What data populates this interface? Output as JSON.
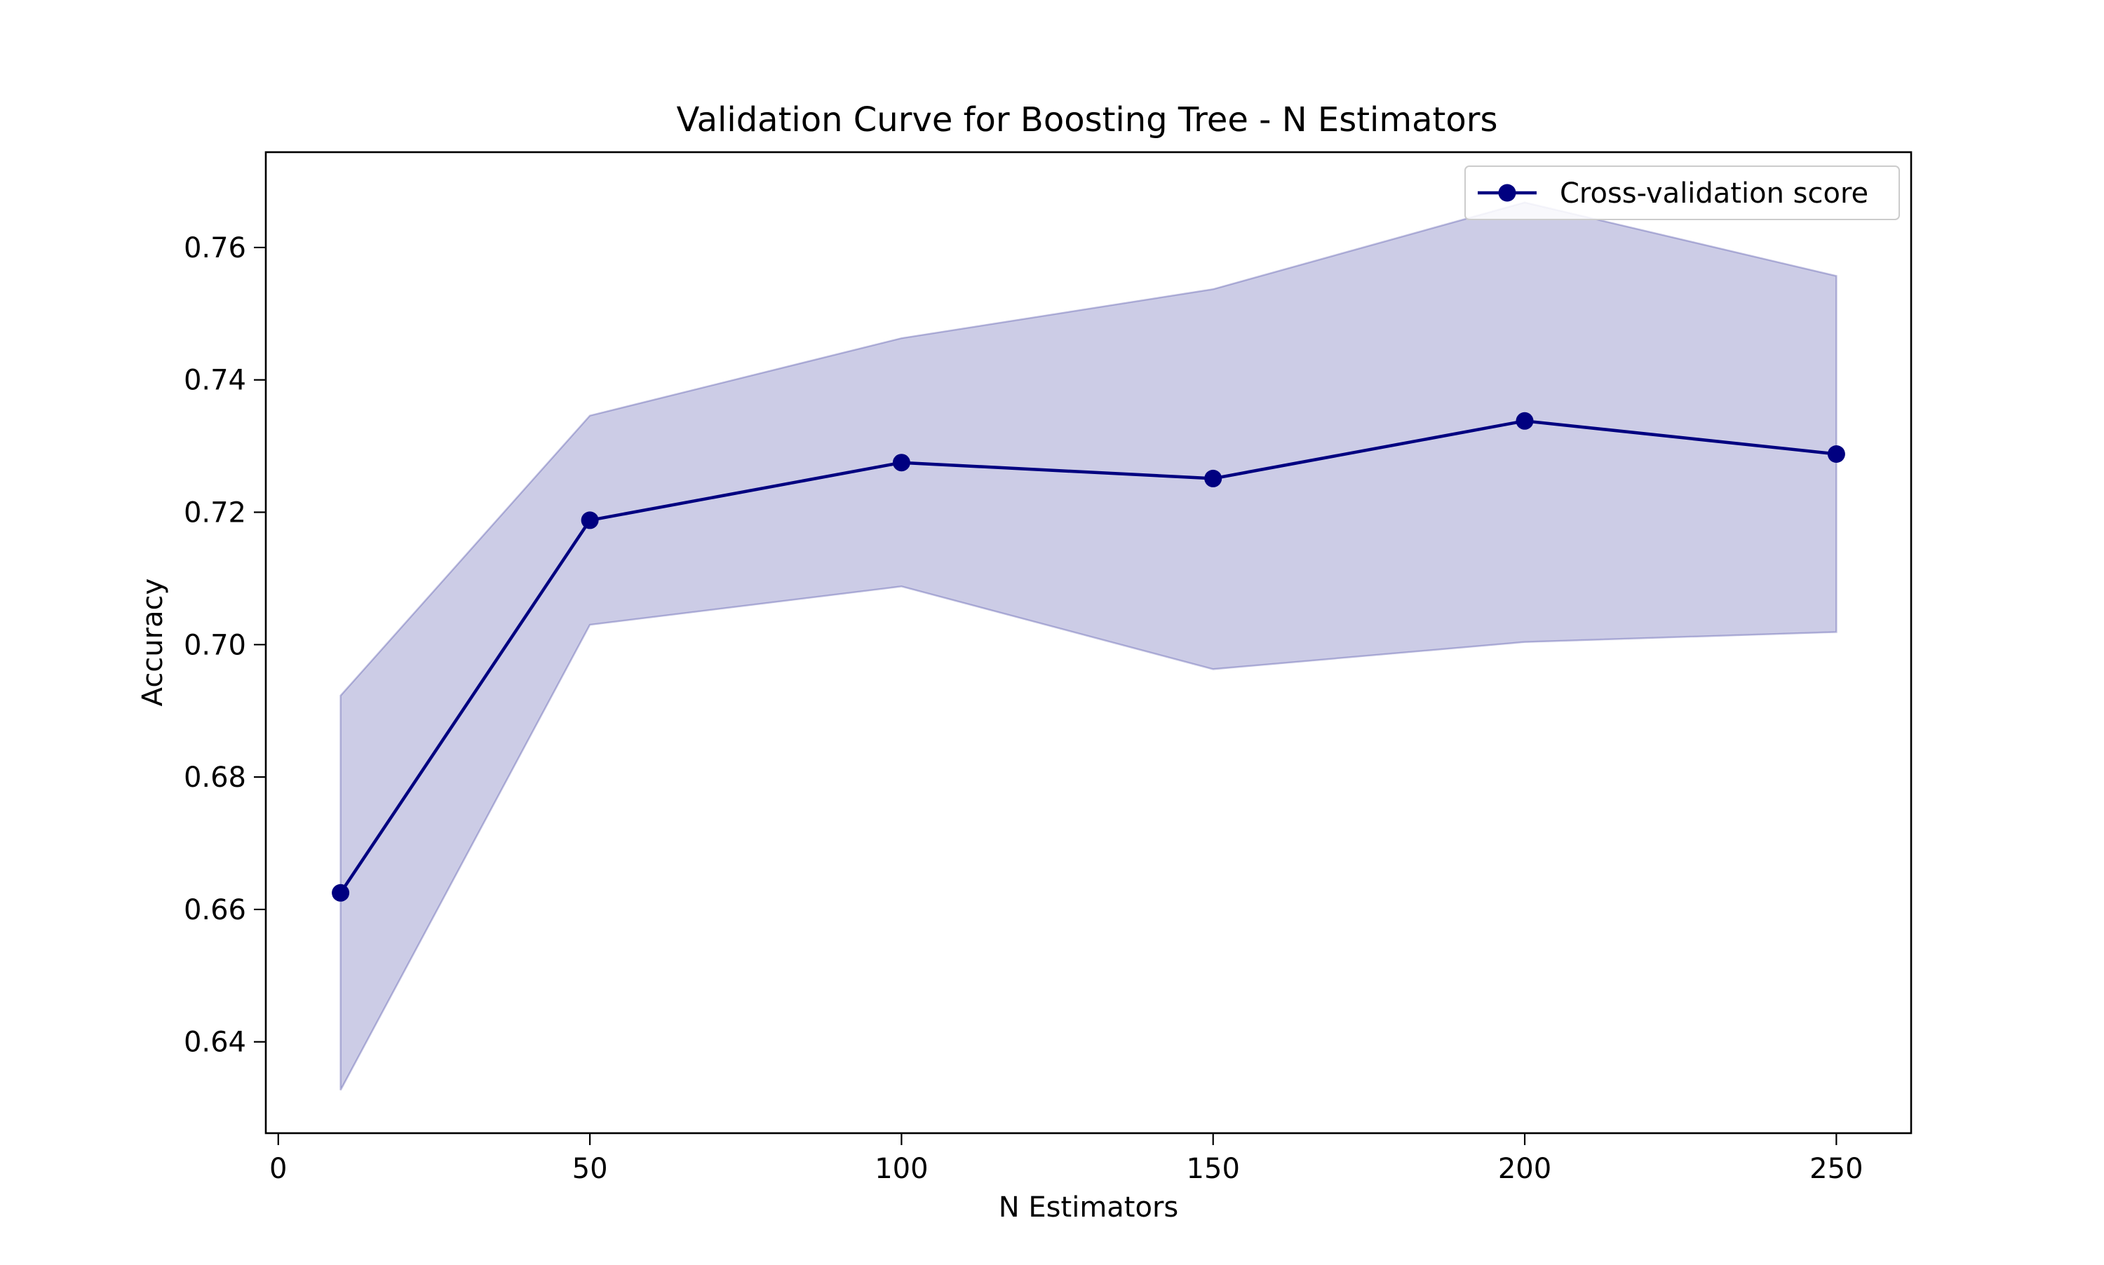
{
  "chart_data": {
    "type": "line",
    "title": "Validation Curve for Boosting Tree - N Estimators",
    "xlabel": "N Estimators",
    "ylabel": "Accuracy",
    "xlim": [
      -2,
      262
    ],
    "ylim": [
      0.6262,
      0.7744
    ],
    "xticks": [
      0,
      50,
      100,
      150,
      200,
      250
    ],
    "yticks": [
      0.64,
      0.66,
      0.68,
      0.7,
      0.72,
      0.74,
      0.76
    ],
    "xtick_labels": [
      "0",
      "50",
      "100",
      "150",
      "200",
      "250"
    ],
    "ytick_labels": [
      "0.64",
      "0.66",
      "0.68",
      "0.70",
      "0.72",
      "0.74",
      "0.76"
    ],
    "grid": false,
    "legend_position": "top-right",
    "series": [
      {
        "name": "Cross-validation score",
        "color": "#000080",
        "marker": "circle",
        "x": [
          10,
          50,
          100,
          150,
          200,
          250
        ],
        "values": [
          0.6625,
          0.7188,
          0.7275,
          0.7251,
          0.7338,
          0.7288
        ],
        "band_upper": [
          0.6923,
          0.7346,
          0.7463,
          0.7537,
          0.7668,
          0.7557
        ],
        "band_lower": [
          0.6327,
          0.703,
          0.7088,
          0.6963,
          0.7004,
          0.7019
        ],
        "band_color": "#000080",
        "band_opacity": 0.2
      }
    ]
  }
}
